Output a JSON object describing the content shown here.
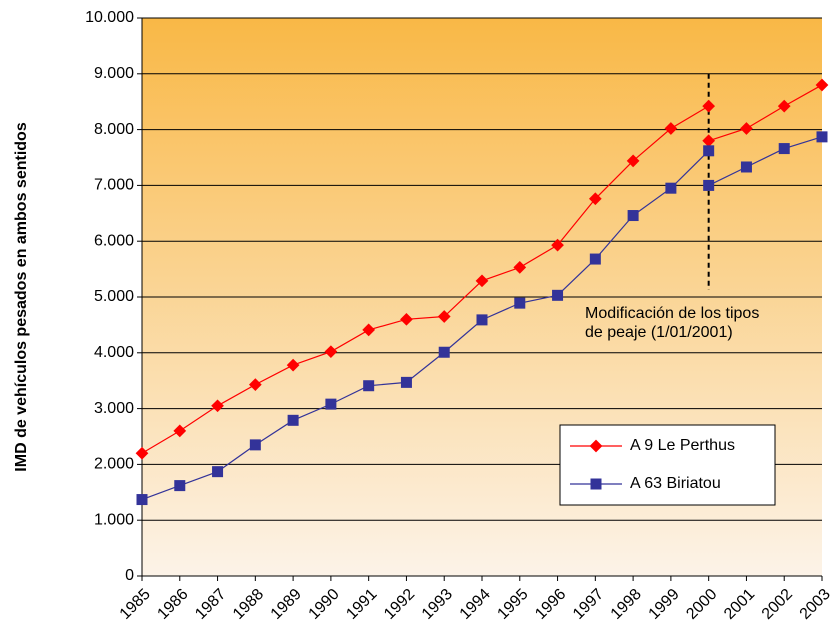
{
  "chart_data": {
    "type": "line",
    "y_label": "IMD de vehículos pesados en ambos sentidos",
    "x": [
      1985,
      1986,
      1987,
      1988,
      1989,
      1990,
      1991,
      1992,
      1993,
      1994,
      1995,
      1996,
      1997,
      1998,
      1999,
      2000,
      2000,
      2000,
      2001,
      2002,
      2003
    ],
    "series": [
      {
        "name": "A 9 Le Perthus",
        "color": "#ff0000",
        "marker": "diamond",
        "values": [
          2200,
          2600,
          3050,
          3430,
          3780,
          4020,
          4410,
          4600,
          4650,
          5290,
          5530,
          5930,
          6760,
          7440,
          8020,
          8420,
          null,
          7800,
          8020,
          8420,
          8800
        ]
      },
      {
        "name": "A 63 Biriatou",
        "color": "#333399",
        "marker": "square",
        "values": [
          1370,
          1620,
          1870,
          2350,
          2790,
          3080,
          3410,
          3470,
          4010,
          4590,
          4890,
          5030,
          5680,
          6460,
          6950,
          7620,
          null,
          7000,
          7330,
          7660,
          7870
        ]
      }
    ],
    "annotation": [
      "Modificación de los tipos",
      "de peaje (1/01/2001)"
    ],
    "xlim": [
      1985,
      2003
    ],
    "xticks": [
      1985,
      1986,
      1987,
      1988,
      1989,
      1990,
      1991,
      1992,
      1993,
      1994,
      1995,
      1996,
      1997,
      1998,
      1999,
      2000,
      2001,
      2002,
      2003
    ],
    "ylim": [
      0,
      10000
    ],
    "yticks": [
      0,
      {
        "value": 1000,
        "label": "1.000"
      },
      {
        "value": 2000,
        "label": "2.000"
      },
      {
        "value": 3000,
        "label": "3.000"
      },
      {
        "value": 4000,
        "label": "4.000"
      },
      {
        "value": 5000,
        "label": "5.000"
      },
      {
        "value": 6000,
        "label": "6.000"
      },
      {
        "value": 7000,
        "label": "7.000"
      },
      {
        "value": 8000,
        "label": "8.000"
      },
      {
        "value": 9000,
        "label": "9.000"
      },
      {
        "value": 10000,
        "label": "10.000"
      }
    ],
    "grid": true,
    "legend": "lower right"
  }
}
